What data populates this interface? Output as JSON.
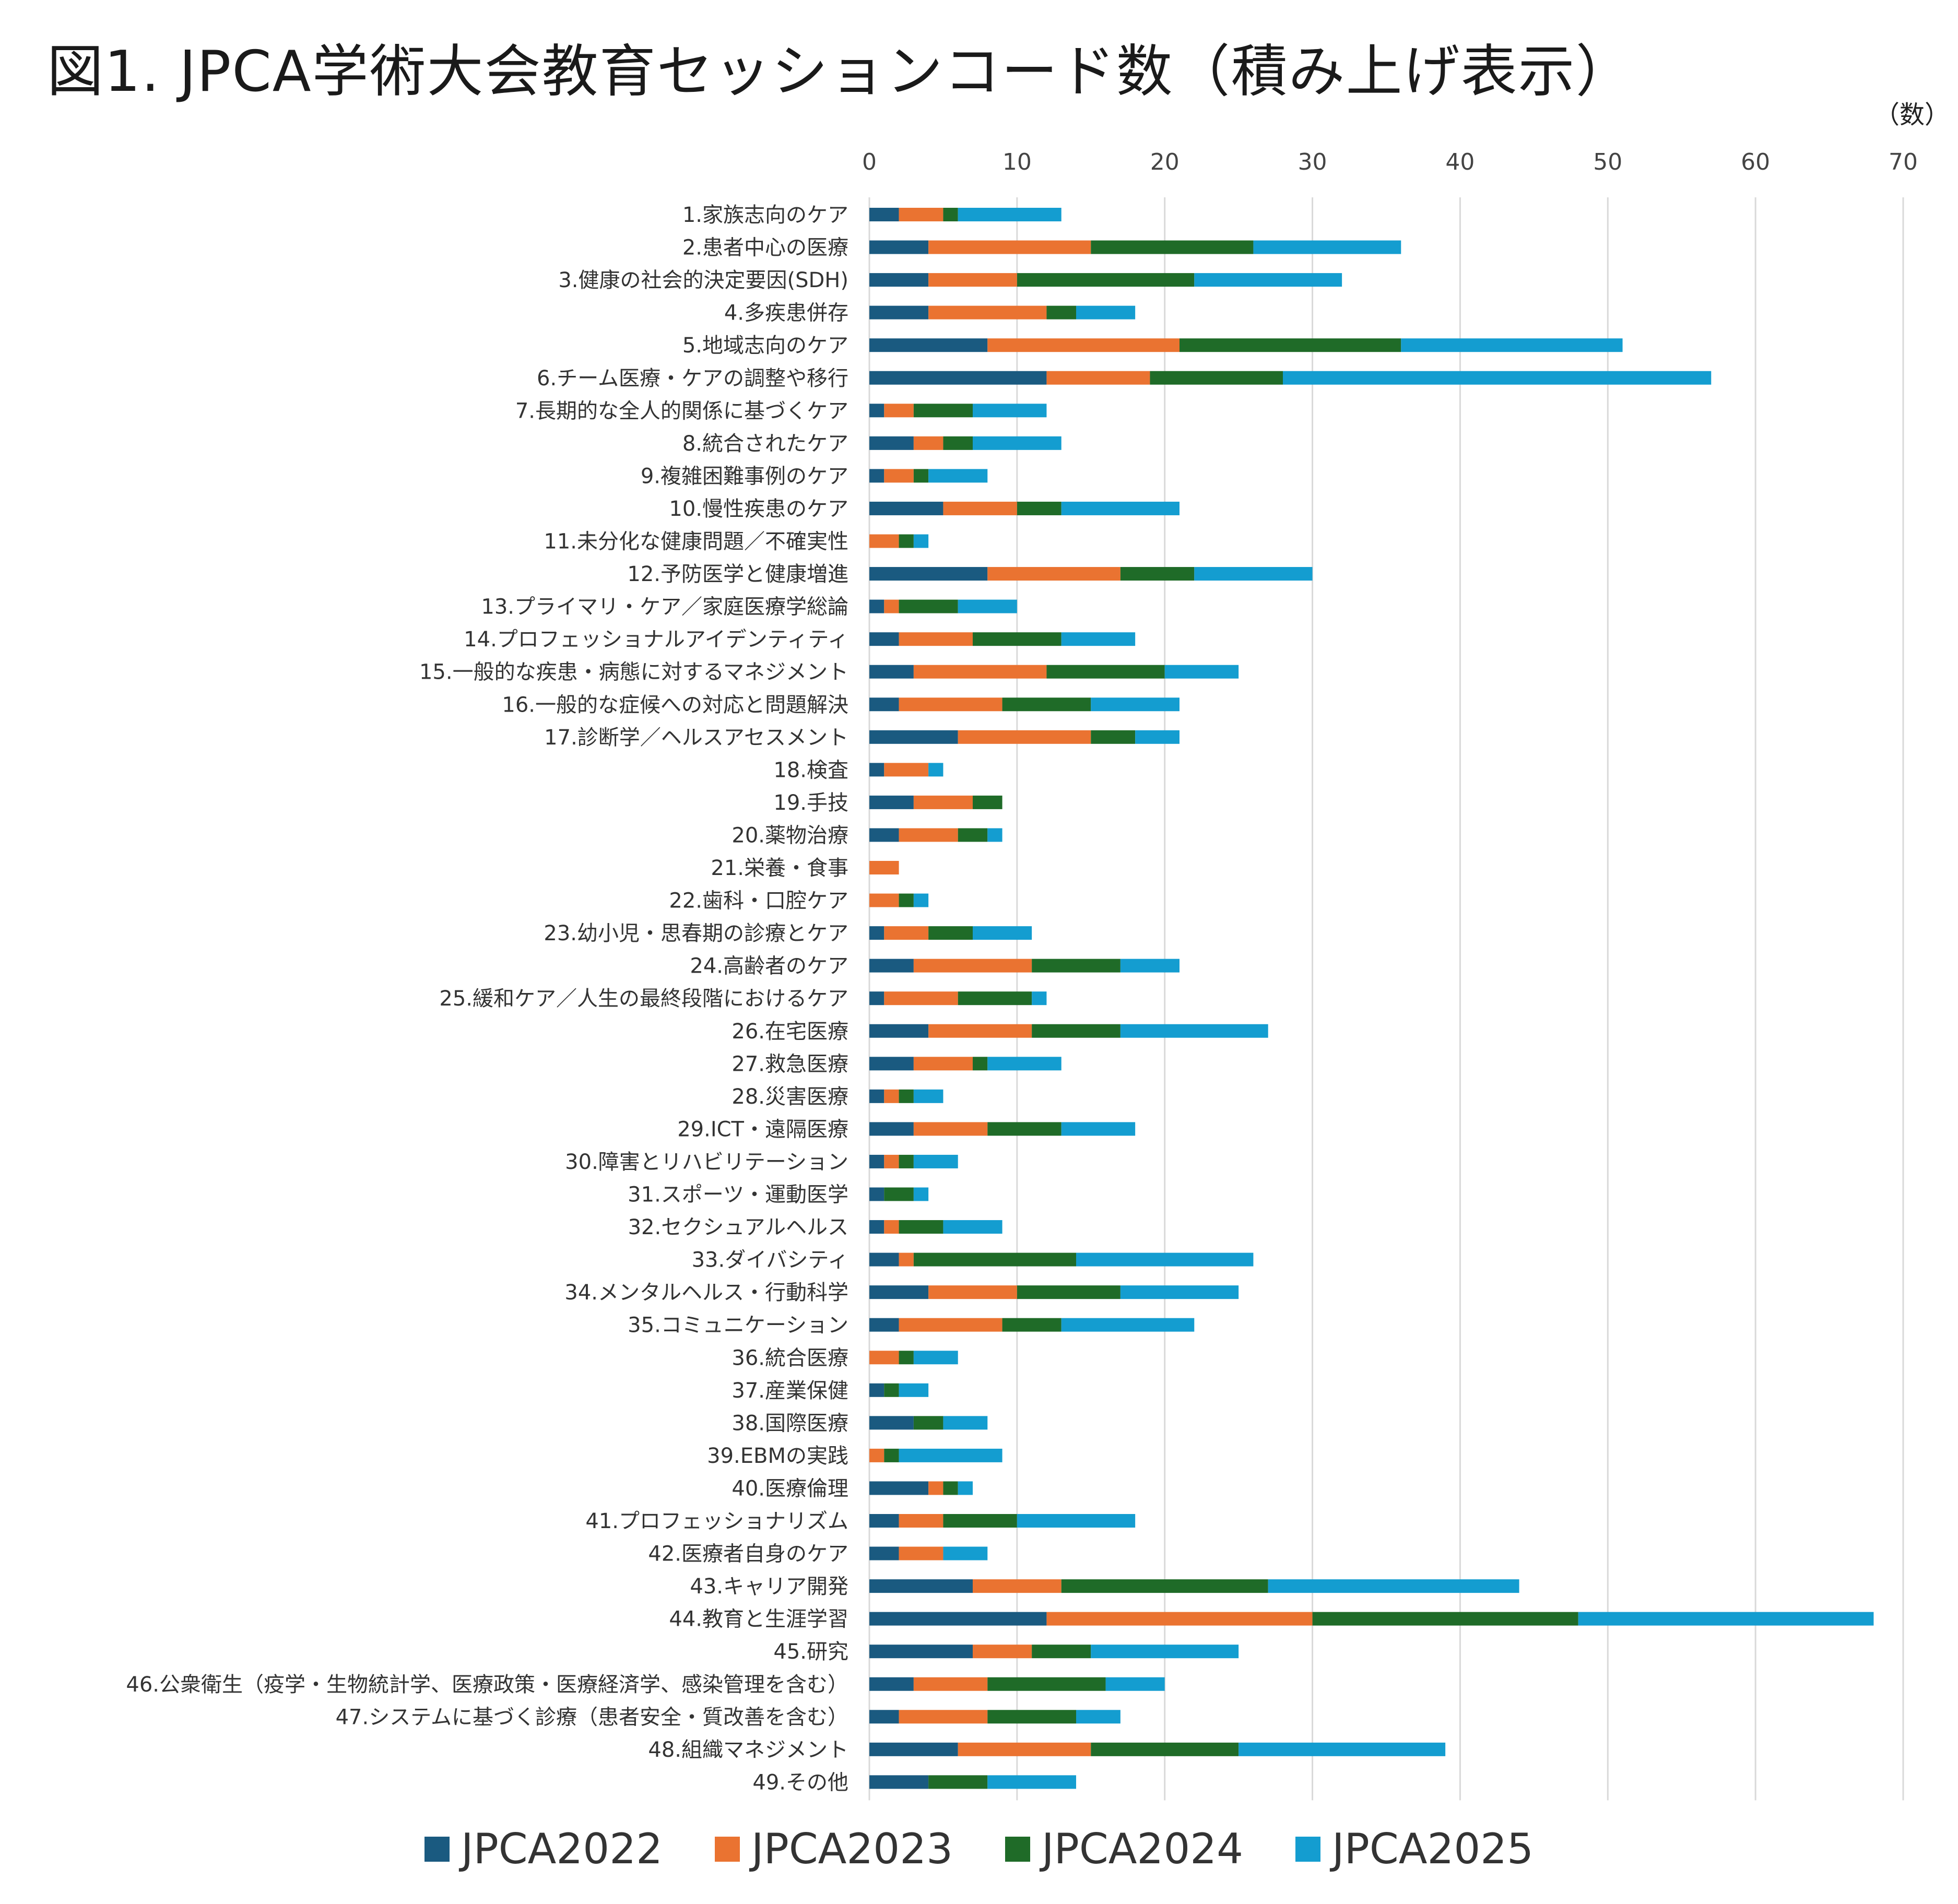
{
  "title": "図1. JPCA学術大会教育セッションコード数（積み上げ表示）",
  "unit_label": "（数）",
  "chart_data": {
    "type": "bar",
    "orientation": "horizontal",
    "stacked": true,
    "title": "図1. JPCA学術大会教育セッションコード数（積み上げ表示）",
    "xlabel": "",
    "ylabel": "",
    "xlim": [
      0,
      70
    ],
    "xticks": [
      0,
      10,
      20,
      30,
      40,
      50,
      60,
      70
    ],
    "grid": true,
    "legend_position": "bottom",
    "categories": [
      "1.家族志向のケア",
      "2.患者中心の医療",
      "3.健康の社会的決定要因(SDH)",
      "4.多疾患併存",
      "5.地域志向のケア",
      "6.チーム医療・ケアの調整や移行",
      "7.長期的な全人的関係に基づくケア",
      "8.統合されたケア",
      "9.複雑困難事例のケア",
      "10.慢性疾患のケア",
      "11.未分化な健康問題／不確実性",
      "12.予防医学と健康増進",
      "13.プライマリ・ケア／家庭医療学総論",
      "14.プロフェッショナルアイデンティティ",
      "15.一般的な疾患・病態に対するマネジメント",
      "16.一般的な症候への対応と問題解決",
      "17.診断学／ヘルスアセスメント",
      "18.検査",
      "19.手技",
      "20.薬物治療",
      "21.栄養・食事",
      "22.歯科・口腔ケア",
      "23.幼小児・思春期の診療とケア",
      "24.高齢者のケア",
      "25.緩和ケア／人生の最終段階におけるケア",
      "26.在宅医療",
      "27.救急医療",
      "28.災害医療",
      "29.ICT・遠隔医療",
      "30.障害とリハビリテーション",
      "31.スポーツ・運動医学",
      "32.セクシュアルヘルス",
      "33.ダイバシティ",
      "34.メンタルヘルス・行動科学",
      "35.コミュニケーション",
      "36.統合医療",
      "37.産業保健",
      "38.国際医療",
      "39.EBMの実践",
      "40.医療倫理",
      "41.プロフェッショナリズム",
      "42.医療者自身のケア",
      "43.キャリア開発",
      "44.教育と生涯学習",
      "45.研究",
      "46.公衆衛生（疫学・生物統計学、医療政策・医療経済学、感染管理を含む）",
      "47.システムに基づく診療（患者安全・質改善を含む）",
      "48.組織マネジメント",
      "49.その他"
    ],
    "series": [
      {
        "name": "JPCA2022",
        "color": "#1a5a80",
        "values": [
          2,
          4,
          4,
          4,
          8,
          12,
          1,
          3,
          1,
          5,
          0,
          8,
          1,
          2,
          3,
          2,
          6,
          1,
          3,
          2,
          0,
          0,
          1,
          3,
          1,
          4,
          3,
          1,
          3,
          1,
          1,
          1,
          2,
          4,
          2,
          0,
          1,
          3,
          0,
          4,
          2,
          2,
          7,
          12,
          7,
          3,
          2,
          6,
          4
        ]
      },
      {
        "name": "JPCA2023",
        "color": "#ea7331",
        "values": [
          3,
          11,
          6,
          8,
          13,
          7,
          2,
          2,
          2,
          5,
          2,
          9,
          1,
          5,
          9,
          7,
          9,
          3,
          4,
          4,
          2,
          2,
          3,
          8,
          5,
          7,
          4,
          1,
          5,
          1,
          0,
          1,
          1,
          6,
          7,
          2,
          0,
          0,
          1,
          1,
          3,
          3,
          6,
          18,
          4,
          5,
          6,
          9,
          0
        ]
      },
      {
        "name": "JPCA2024",
        "color": "#1f6b28",
        "values": [
          1,
          11,
          12,
          2,
          15,
          9,
          4,
          2,
          1,
          3,
          1,
          5,
          4,
          6,
          8,
          6,
          3,
          0,
          2,
          2,
          0,
          1,
          3,
          6,
          5,
          6,
          1,
          1,
          5,
          1,
          2,
          3,
          11,
          7,
          4,
          1,
          1,
          2,
          1,
          1,
          5,
          0,
          14,
          18,
          4,
          8,
          6,
          10,
          4
        ]
      },
      {
        "name": "JPCA2025",
        "color": "#149dd0",
        "values": [
          7,
          10,
          10,
          4,
          15,
          29,
          5,
          6,
          4,
          8,
          1,
          8,
          4,
          5,
          5,
          6,
          3,
          1,
          0,
          1,
          0,
          1,
          4,
          4,
          1,
          10,
          5,
          2,
          5,
          3,
          1,
          4,
          12,
          8,
          9,
          3,
          2,
          3,
          7,
          1,
          8,
          3,
          17,
          20,
          10,
          4,
          3,
          14,
          6
        ]
      }
    ]
  }
}
